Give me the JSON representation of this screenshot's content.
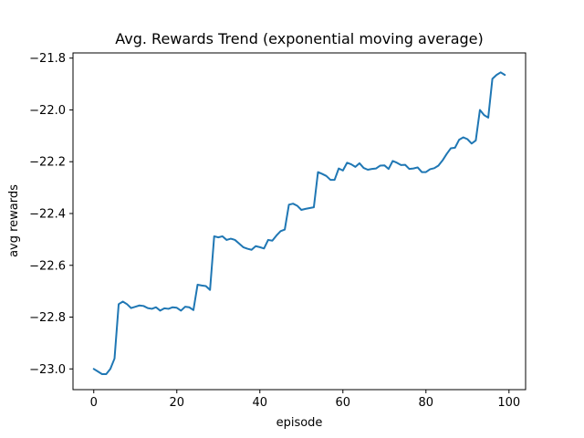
{
  "chart_data": {
    "type": "line",
    "title": "Avg. Rewards Trend (exponential moving average)",
    "xlabel": "episode",
    "ylabel": "avg rewards",
    "xlim": [
      -5,
      104
    ],
    "ylim": [
      -23.08,
      -21.78
    ],
    "xticks": [
      0,
      20,
      40,
      60,
      80,
      100
    ],
    "xtick_labels": [
      "0",
      "20",
      "40",
      "60",
      "80",
      "100"
    ],
    "yticks": [
      -23.0,
      -22.8,
      -22.6,
      -22.4,
      -22.2,
      -22.0,
      -21.8
    ],
    "ytick_labels": [
      "−23.0",
      "−22.8",
      "−22.6",
      "−22.4",
      "−22.2",
      "−22.0",
      "−21.8"
    ],
    "grid": false,
    "legend": false,
    "line_color": "#1f77b4",
    "series": [
      {
        "x": [
          0,
          1,
          2,
          3,
          4,
          5,
          6,
          7,
          8,
          9,
          10,
          11,
          12,
          13,
          14,
          15,
          16,
          17,
          18,
          19,
          20,
          21,
          22,
          23,
          24,
          25,
          26,
          27,
          28,
          29,
          30,
          31,
          32,
          33,
          34,
          35,
          36,
          37,
          38,
          39,
          40,
          41,
          42,
          43,
          44,
          45,
          46,
          47,
          48,
          49,
          50,
          51,
          52,
          53,
          54,
          55,
          56,
          57,
          58,
          59,
          60,
          61,
          62,
          63,
          64,
          65,
          66,
          67,
          68,
          69,
          70,
          71,
          72,
          73,
          74,
          75,
          76,
          77,
          78,
          79,
          80,
          81,
          82,
          83,
          84,
          85,
          86,
          87,
          88,
          89,
          90,
          91,
          92,
          93,
          94,
          95,
          96,
          97,
          98,
          99
        ],
        "y": [
          -23.0,
          -23.01,
          -23.02,
          -23.02,
          -23.0,
          -22.96,
          -22.75,
          -22.74,
          -22.75,
          -22.765,
          -22.76,
          -22.755,
          -22.757,
          -22.765,
          -22.768,
          -22.762,
          -22.775,
          -22.766,
          -22.768,
          -22.762,
          -22.764,
          -22.775,
          -22.76,
          -22.762,
          -22.773,
          -22.675,
          -22.678,
          -22.68,
          -22.695,
          -22.488,
          -22.492,
          -22.488,
          -22.502,
          -22.497,
          -22.502,
          -22.516,
          -22.53,
          -22.536,
          -22.54,
          -22.526,
          -22.53,
          -22.535,
          -22.502,
          -22.505,
          -22.485,
          -22.468,
          -22.462,
          -22.366,
          -22.362,
          -22.37,
          -22.386,
          -22.382,
          -22.379,
          -22.376,
          -22.24,
          -22.247,
          -22.255,
          -22.27,
          -22.27,
          -22.226,
          -22.234,
          -22.204,
          -22.21,
          -22.22,
          -22.206,
          -22.224,
          -22.231,
          -22.228,
          -22.226,
          -22.215,
          -22.214,
          -22.228,
          -22.197,
          -22.204,
          -22.213,
          -22.212,
          -22.228,
          -22.226,
          -22.222,
          -22.24,
          -22.24,
          -22.229,
          -22.225,
          -22.215,
          -22.195,
          -22.17,
          -22.148,
          -22.146,
          -22.115,
          -22.106,
          -22.113,
          -22.13,
          -22.118,
          -22.0,
          -22.02,
          -22.03,
          -21.88,
          -21.865,
          -21.855,
          -21.865
        ]
      }
    ]
  }
}
